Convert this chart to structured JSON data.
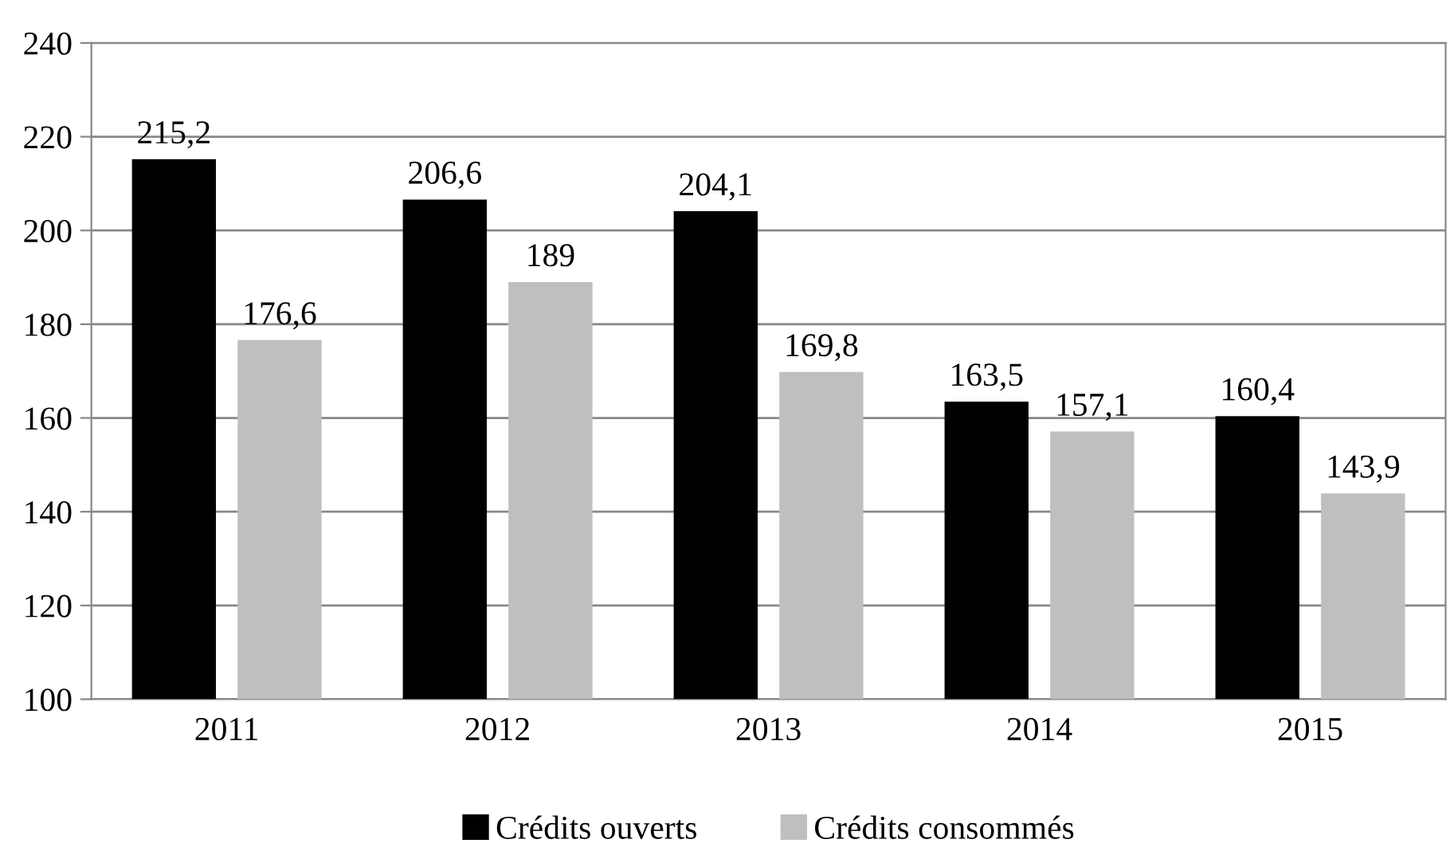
{
  "chart_data": {
    "type": "bar",
    "categories": [
      "2011",
      "2012",
      "2013",
      "2014",
      "2015"
    ],
    "series": [
      {
        "name": "Crédits ouverts",
        "color": "#000000",
        "values": [
          215.2,
          206.6,
          204.1,
          163.5,
          160.4
        ],
        "value_labels": [
          "215,2",
          "206,6",
          "204,1",
          "163,5",
          "160,4"
        ]
      },
      {
        "name": "Crédits consommés",
        "color": "#bfbfbf",
        "values": [
          176.6,
          189,
          169.8,
          157.1,
          143.9
        ],
        "value_labels": [
          "176,6",
          "189",
          "169,8",
          "157,1",
          "143,9"
        ]
      }
    ],
    "ylim": [
      100,
      240
    ],
    "yticks": [
      100,
      120,
      140,
      160,
      180,
      200,
      220,
      240
    ],
    "grid": "y",
    "legend": "bottom"
  }
}
